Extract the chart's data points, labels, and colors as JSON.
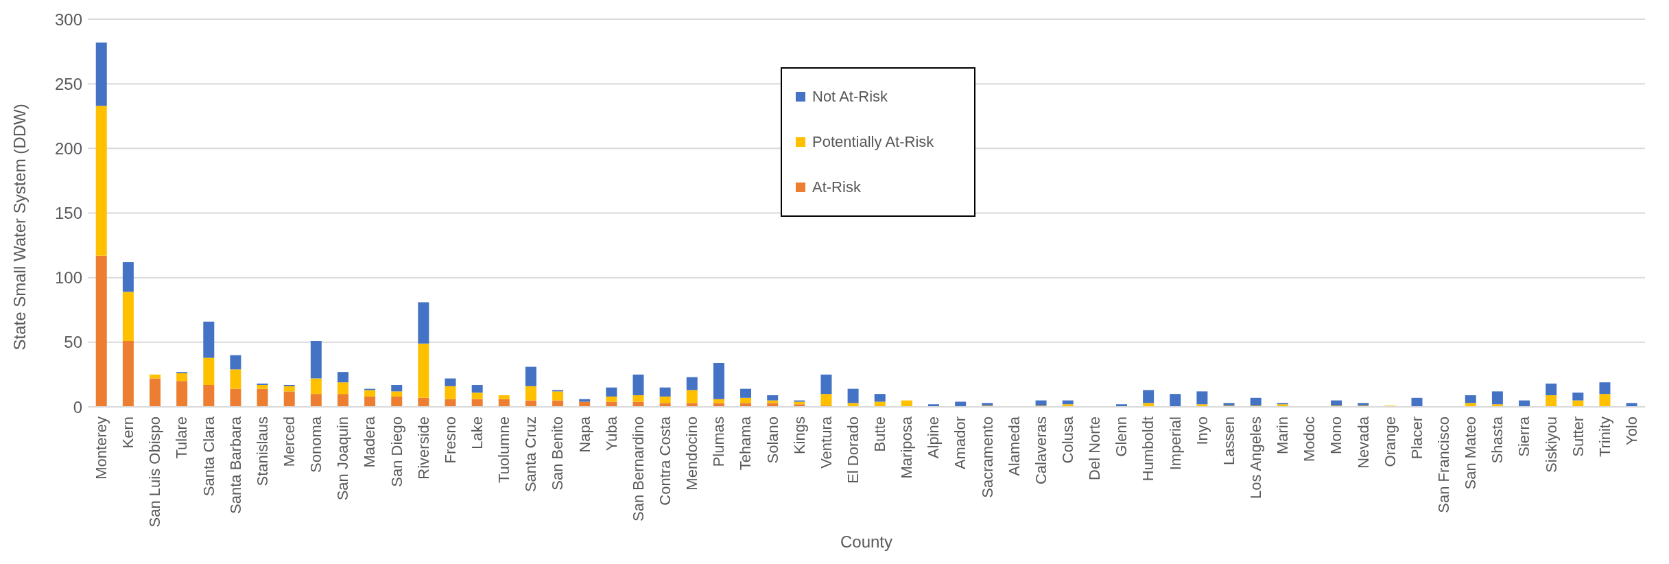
{
  "chart_data": {
    "type": "bar",
    "stacked": true,
    "xlabel": "County",
    "ylabel": "State Small Water System (DDW)",
    "categories": [
      "Monterey",
      "Kern",
      "San Luis Obispo",
      "Tulare",
      "Santa Clara",
      "Santa Barbara",
      "Stanislaus",
      "Merced",
      "Sonoma",
      "San Joaquin",
      "Madera",
      "San Diego",
      "Riverside",
      "Fresno",
      "Lake",
      "Tuolumne",
      "Santa Cruz",
      "San Benito",
      "Napa",
      "Yuba",
      "San Bernardino",
      "Contra Costa",
      "Mendocino",
      "Plumas",
      "Tehama",
      "Solano",
      "Kings",
      "Ventura",
      "El Dorado",
      "Butte",
      "Mariposa",
      "Alpine",
      "Amador",
      "Sacramento",
      "Alameda",
      "Calaveras",
      "Colusa",
      "Del Norte",
      "Glenn",
      "Humboldt",
      "Imperial",
      "Inyo",
      "Lassen",
      "Los Angeles",
      "Marin",
      "Modoc",
      "Mono",
      "Nevada",
      "Orange",
      "Placer",
      "San Francisco",
      "San Mateo",
      "Shasta",
      "Sierra",
      "Siskiyou",
      "Sutter",
      "Trinity",
      "Yolo"
    ],
    "series": [
      {
        "name": "At-Risk",
        "color": "#ed7d31",
        "values": [
          117,
          51,
          22,
          20,
          17,
          14,
          14,
          12,
          10,
          10,
          8,
          8,
          7,
          6,
          6,
          6,
          5,
          5,
          4,
          4,
          4,
          3,
          3,
          3,
          3,
          3,
          2,
          1,
          0,
          0,
          0,
          0,
          0,
          0,
          0,
          0,
          0,
          0,
          0,
          0,
          0,
          0,
          0,
          0,
          0,
          0,
          0,
          0,
          0,
          0,
          0,
          0,
          0,
          0,
          0,
          0,
          0,
          0
        ]
      },
      {
        "name": "Potentially At-Risk",
        "color": "#ffc000",
        "values": [
          116,
          38,
          3,
          6,
          21,
          15,
          3,
          4,
          12,
          9,
          5,
          4,
          42,
          10,
          5,
          3,
          11,
          7,
          0,
          4,
          5,
          5,
          10,
          3,
          4,
          2,
          2,
          9,
          3,
          4,
          5,
          0,
          0,
          1,
          0,
          1,
          2,
          0,
          0,
          3,
          0,
          2,
          1,
          1,
          2,
          0,
          1,
          1,
          1,
          0,
          0,
          3,
          2,
          0,
          9,
          5,
          10,
          0
        ]
      },
      {
        "name": "Not At-Risk",
        "color": "#4472c4",
        "values": [
          49,
          23,
          0,
          1,
          28,
          11,
          1,
          1,
          29,
          8,
          1,
          5,
          32,
          6,
          6,
          0,
          15,
          1,
          2,
          7,
          16,
          7,
          10,
          28,
          7,
          4,
          1,
          15,
          11,
          6,
          0,
          2,
          4,
          2,
          0,
          4,
          3,
          0,
          2,
          10,
          10,
          10,
          2,
          6,
          1,
          0,
          4,
          2,
          0,
          7,
          0,
          6,
          10,
          5,
          9,
          6,
          9,
          3
        ]
      }
    ],
    "ylim": [
      0,
      300
    ],
    "yticks": [
      0,
      50,
      100,
      150,
      200,
      250,
      300
    ],
    "grid": "y",
    "legend": "top"
  }
}
